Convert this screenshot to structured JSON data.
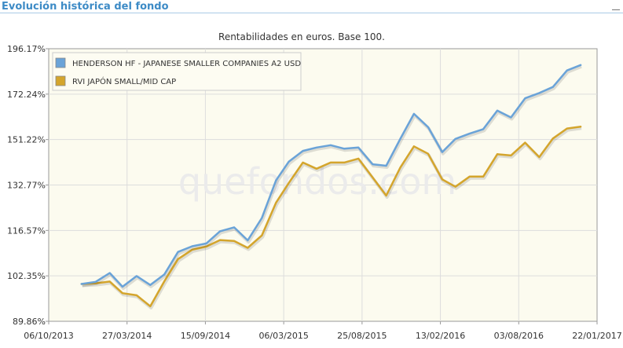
{
  "header": {
    "title": "Evolución histórica del fondo"
  },
  "watermark": "quefondos.com",
  "chart_data": {
    "type": "line",
    "title": "Rentabilidades en euros. Base 100.",
    "xlabel": "",
    "ylabel": "",
    "x_tick_labels": [
      "06/10/2013",
      "27/03/2014",
      "15/09/2014",
      "06/03/2015",
      "25/08/2015",
      "13/02/2016",
      "03/08/2016",
      "22/01/2017"
    ],
    "y_tick_labels": [
      "89.86%",
      "102.35%",
      "116.57%",
      "132.77%",
      "151.22%",
      "172.24%",
      "196.17%"
    ],
    "y_tick_values": [
      89.86,
      102.35,
      116.57,
      132.77,
      151.22,
      172.24,
      196.17
    ],
    "y_scale": "log",
    "xlim": [
      "2013-10-06",
      "2017-01-22"
    ],
    "ylim": [
      89.86,
      196.17
    ],
    "grid": true,
    "legend_position": "top-left",
    "series": [
      {
        "name": "HENDERSON HF - JAPANESE SMALLER COMPANIES A2 USD",
        "color": "#6aa3d8",
        "x": [
          "2013-12-17",
          "2014-01-17",
          "2014-02-17",
          "2014-03-17",
          "2014-04-17",
          "2014-05-17",
          "2014-06-17",
          "2014-07-17",
          "2014-08-17",
          "2014-09-17",
          "2014-10-17",
          "2014-11-17",
          "2014-12-17",
          "2015-01-17",
          "2015-02-17",
          "2015-03-17",
          "2015-04-17",
          "2015-05-17",
          "2015-06-17",
          "2015-07-17",
          "2015-08-17",
          "2015-09-17",
          "2015-10-17",
          "2015-11-17",
          "2015-12-17",
          "2016-01-17",
          "2016-02-17",
          "2016-03-17",
          "2016-04-17",
          "2016-05-17",
          "2016-06-17",
          "2016-07-17",
          "2016-08-17",
          "2016-09-17",
          "2016-10-17",
          "2016-11-17",
          "2016-12-17"
        ],
        "y": [
          100.0,
          100.6,
          103.2,
          99.2,
          102.3,
          99.7,
          102.8,
          109.6,
          111.4,
          112.3,
          116.3,
          117.6,
          113.3,
          120.8,
          134.5,
          141.9,
          146.4,
          147.8,
          148.8,
          147.3,
          147.8,
          140.9,
          140.3,
          151.6,
          162.8,
          156.7,
          145.9,
          151.5,
          153.8,
          155.8,
          164.3,
          161.1,
          170.2,
          172.8,
          175.8,
          184.3,
          187.2
        ]
      },
      {
        "name": "RVI JAPÓN SMALL/MID CAP",
        "color": "#d4a52c",
        "x": [
          "2013-12-17",
          "2014-01-17",
          "2014-02-17",
          "2014-03-17",
          "2014-04-17",
          "2014-05-17",
          "2014-06-17",
          "2014-07-17",
          "2014-08-17",
          "2014-09-17",
          "2014-10-17",
          "2014-11-17",
          "2014-12-17",
          "2015-01-17",
          "2015-02-17",
          "2015-03-17",
          "2015-04-17",
          "2015-05-17",
          "2015-06-17",
          "2015-07-17",
          "2015-08-17",
          "2015-09-17",
          "2015-10-17",
          "2015-11-17",
          "2015-12-17",
          "2016-01-17",
          "2016-02-17",
          "2016-03-17",
          "2016-04-17",
          "2016-05-17",
          "2016-06-17",
          "2016-07-17",
          "2016-08-17",
          "2016-09-17",
          "2016-10-17",
          "2016-11-17",
          "2016-12-17"
        ],
        "y": [
          100.0,
          100.2,
          100.7,
          97.4,
          96.8,
          93.8,
          100.8,
          107.4,
          110.3,
          111.3,
          113.4,
          113.1,
          110.9,
          114.9,
          126.2,
          133.5,
          141.6,
          139.1,
          141.6,
          141.6,
          143.2,
          135.7,
          128.8,
          139.6,
          148.3,
          145.2,
          134.9,
          132.1,
          136.0,
          136.0,
          145.0,
          144.5,
          149.9,
          143.8,
          151.7,
          156.1,
          156.9
        ]
      }
    ]
  }
}
